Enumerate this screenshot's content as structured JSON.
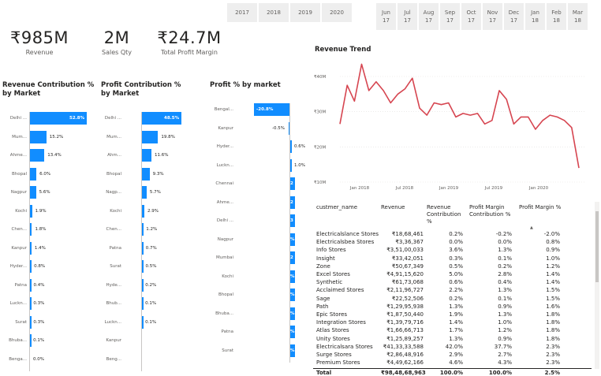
{
  "years": [
    "2017",
    "2018",
    "2019",
    "2020"
  ],
  "months": [
    {
      "m": "Jun",
      "y": "17"
    },
    {
      "m": "Jul",
      "y": "17"
    },
    {
      "m": "Aug",
      "y": "17"
    },
    {
      "m": "Sep",
      "y": "17"
    },
    {
      "m": "Oct",
      "y": "17"
    },
    {
      "m": "Nov",
      "y": "17"
    },
    {
      "m": "Dec",
      "y": "17"
    },
    {
      "m": "Jan",
      "y": "18"
    },
    {
      "m": "Feb",
      "y": "18"
    },
    {
      "m": "Mar",
      "y": "18"
    }
  ],
  "kpis": [
    {
      "value": "₹985M",
      "label": "Revenue"
    },
    {
      "value": "2M",
      "label": "Sales Qty"
    },
    {
      "value": "₹24.7M",
      "label": "Total Profit Margin"
    }
  ],
  "revenue_contrib": {
    "title": "Revenue Contribution % by Market",
    "rows": [
      {
        "market": "Delhi ...",
        "value": "52.8%",
        "pct": 52.8
      },
      {
        "market": "Mum...",
        "value": "15.2%",
        "pct": 15.2
      },
      {
        "market": "Ahme...",
        "value": "13.4%",
        "pct": 13.4
      },
      {
        "market": "Bhopal",
        "value": "6.0%",
        "pct": 6.0
      },
      {
        "market": "Nagpur",
        "value": "5.6%",
        "pct": 5.6
      },
      {
        "market": "Kochi",
        "value": "1.9%",
        "pct": 1.9
      },
      {
        "market": "Chen...",
        "value": "1.8%",
        "pct": 1.8
      },
      {
        "market": "Kanpur",
        "value": "1.4%",
        "pct": 1.4
      },
      {
        "market": "Hyder...",
        "value": "0.8%",
        "pct": 0.8
      },
      {
        "market": "Patna",
        "value": "0.4%",
        "pct": 0.4
      },
      {
        "market": "Luckn...",
        "value": "0.3%",
        "pct": 0.3
      },
      {
        "market": "Surat",
        "value": "0.3%",
        "pct": 0.3
      },
      {
        "market": "Bhuba...",
        "value": "0.1%",
        "pct": 0.1
      },
      {
        "market": "Benga...",
        "value": "0.0%",
        "pct": 0.0
      }
    ]
  },
  "profit_contrib": {
    "title": "Profit Contribution % by Market",
    "rows": [
      {
        "market": "Delhi ...",
        "value": "48.5%",
        "pct": 48.5
      },
      {
        "market": "Mum...",
        "value": "19.8%",
        "pct": 19.8
      },
      {
        "market": "Ahm...",
        "value": "11.6%",
        "pct": 11.6
      },
      {
        "market": "Bhopal",
        "value": "9.3%",
        "pct": 9.3
      },
      {
        "market": "Nagp...",
        "value": "5.7%",
        "pct": 5.7
      },
      {
        "market": "Kochi",
        "value": "2.9%",
        "pct": 2.9
      },
      {
        "market": "Chen...",
        "value": "1.2%",
        "pct": 1.2
      },
      {
        "market": "Patna",
        "value": "0.7%",
        "pct": 0.7
      },
      {
        "market": "Surat",
        "value": "0.5%",
        "pct": 0.5
      },
      {
        "market": "Hyde...",
        "value": "0.2%",
        "pct": 0.2
      },
      {
        "market": "Bhub...",
        "value": "0.1%",
        "pct": 0.1
      },
      {
        "market": "Luckn...",
        "value": "0.1%",
        "pct": 0.1
      },
      {
        "market": "Kanpur",
        "value": "",
        "pct": 0
      },
      {
        "market": "Beng...",
        "value": "",
        "pct": 0
      }
    ]
  },
  "profit_pct": {
    "title": "Profit % by market",
    "rows": [
      {
        "market": "Bengal...",
        "value": "-20.8%"
      },
      {
        "market": "Kanpur",
        "value": "-0.5%"
      },
      {
        "market": "Hyder...",
        "value": "0.6%"
      },
      {
        "market": "Luckn...",
        "value": "1.0%"
      },
      {
        "market": "Chennai",
        "value": "2"
      },
      {
        "market": "Ahme...",
        "value": "2"
      },
      {
        "market": "Delhi ...",
        "value": "3"
      },
      {
        "market": "Nagpur",
        "value": "%"
      },
      {
        "market": "Mumbai",
        "value": "2"
      },
      {
        "market": "Kochi",
        "value": "%"
      },
      {
        "market": "Bhopal",
        "value": "%"
      },
      {
        "market": "Bhuba...",
        "value": "%"
      },
      {
        "market": "Patna",
        "value": "%"
      },
      {
        "market": "Surat",
        "value": "%"
      }
    ]
  },
  "trend": {
    "title": "Revenue Trend",
    "y_ticks": [
      "₹40M",
      "₹30M",
      "₹20M",
      "₹10M"
    ],
    "x_ticks": [
      "Jan 2018",
      "Jul 2018",
      "Jan 2019",
      "Jul 2019",
      "Jan 2020"
    ]
  },
  "table": {
    "headers": [
      "custmer_name",
      "Revenue",
      "Revenue Contribution %",
      "Profit Margin Contribution %",
      "Profit Margin %"
    ],
    "rows": [
      [
        "Electricalslance Stores",
        "₹18,68,461",
        "0.2%",
        "-0.2%",
        "-2.0%"
      ],
      [
        "Electricalsbea Stores",
        "₹3,36,367",
        "0.0%",
        "0.0%",
        "0.8%"
      ],
      [
        "Info Stores",
        "₹3,51,00,033",
        "3.6%",
        "1.3%",
        "0.9%"
      ],
      [
        "Insight",
        "₹33,42,051",
        "0.3%",
        "0.1%",
        "1.0%"
      ],
      [
        "Zone",
        "₹50,67,349",
        "0.5%",
        "0.2%",
        "1.2%"
      ],
      [
        "Excel Stores",
        "₹4,91,15,620",
        "5.0%",
        "2.8%",
        "1.4%"
      ],
      [
        "Synthetic",
        "₹61,73,068",
        "0.6%",
        "0.4%",
        "1.4%"
      ],
      [
        "Acclaimed Stores",
        "₹2,11,96,727",
        "2.2%",
        "1.3%",
        "1.5%"
      ],
      [
        "Sage",
        "₹22,52,506",
        "0.2%",
        "0.1%",
        "1.5%"
      ],
      [
        "Path",
        "₹1,29,95,938",
        "1.3%",
        "0.9%",
        "1.6%"
      ],
      [
        "Epic Stores",
        "₹1,87,50,440",
        "1.9%",
        "1.3%",
        "1.8%"
      ],
      [
        "Integration Stores",
        "₹1,39,79,716",
        "1.4%",
        "1.0%",
        "1.8%"
      ],
      [
        "Atlas Stores",
        "₹1,66,66,713",
        "1.7%",
        "1.2%",
        "1.8%"
      ],
      [
        "Unity Stores",
        "₹1,25,89,257",
        "1.3%",
        "0.9%",
        "1.8%"
      ],
      [
        "Electricalsara Stores",
        "₹41,33,33,588",
        "42.0%",
        "37.7%",
        "2.3%"
      ],
      [
        "Surge Stores",
        "₹2,86,48,916",
        "2.9%",
        "2.7%",
        "2.3%"
      ],
      [
        "Premium Stores",
        "₹4,49,62,166",
        "4.6%",
        "4.3%",
        "2.3%"
      ]
    ],
    "total": [
      "Total",
      "₹98,48,68,963",
      "100.0%",
      "100.0%",
      "2.5%"
    ]
  },
  "colors": {
    "accent": "#118dff",
    "line": "#d64550"
  }
}
